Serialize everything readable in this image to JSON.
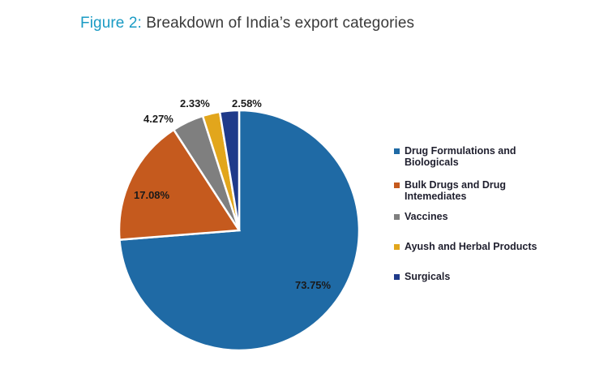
{
  "title": {
    "prefix": "Figure 2:",
    "text": " Breakdown of India’s export categories"
  },
  "chart_data": {
    "type": "pie",
    "title": "Figure 2: Breakdown of India’s export categories",
    "categories": [
      "Drug Formulations and Biologicals",
      "Bulk Drugs and Drug Intemediates",
      "Vaccines",
      "Ayush and Herbal Products",
      "Surgicals"
    ],
    "values": [
      73.75,
      17.08,
      4.27,
      2.33,
      2.58
    ],
    "labels": [
      "73.75%",
      "17.08%",
      "4.27%",
      "2.33%",
      "2.58%"
    ],
    "colors": [
      "#1f6aa5",
      "#c55a1e",
      "#7f7f7f",
      "#e2a61c",
      "#1f3a8a"
    ],
    "legend_position": "right",
    "start_angle": "12 o'clock, clockwise"
  },
  "legend": [
    {
      "line1": "Drug Formulations and",
      "line2": "Biologicals",
      "color": "#1f6aa5"
    },
    {
      "line1": "Bulk Drugs and Drug",
      "line2": "Intemediates",
      "color": "#c55a1e"
    },
    {
      "line1": "Vaccines",
      "line2": "",
      "color": "#7f7f7f"
    },
    {
      "line1": "Ayush and Herbal Products",
      "line2": "",
      "color": "#e2a61c"
    },
    {
      "line1": "Surgicals",
      "line2": "",
      "color": "#1f3a8a"
    }
  ]
}
